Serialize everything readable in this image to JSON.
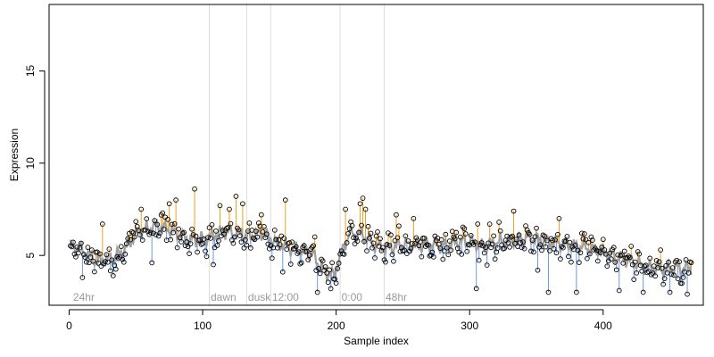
{
  "chart_data": {
    "type": "scatter",
    "title": "",
    "xlabel": "Sample index",
    "ylabel": "Expression",
    "xlim": [
      -15,
      475
    ],
    "ylim": [
      2.3,
      18.6
    ],
    "xticks": [
      0,
      100,
      200,
      300,
      400
    ],
    "yticks": [
      5,
      10,
      15
    ],
    "grid": false,
    "legend": "none",
    "colors": {
      "points_edge": "#000000",
      "fit_line": "#a0a0a0",
      "residual_above": "#f0a020",
      "residual_below": "#6a9ae0",
      "divider": "#dddddd",
      "annotation_text": "#9a9a9a"
    },
    "dividers": [
      105,
      133,
      151,
      203,
      236
    ],
    "annotations": [
      {
        "x": 3,
        "text": "24hr"
      },
      {
        "x": 106,
        "text": "dawn"
      },
      {
        "x": 134,
        "text": "dusk"
      },
      {
        "x": 152,
        "text": "12:00"
      },
      {
        "x": 204,
        "text": "0:00"
      },
      {
        "x": 237,
        "text": "48hr"
      }
    ],
    "anchors": [
      [
        1,
        5.5
      ],
      [
        10,
        5.3
      ],
      [
        20,
        4.7
      ],
      [
        30,
        4.8
      ],
      [
        40,
        5.2
      ],
      [
        52,
        6.3
      ],
      [
        65,
        6.6
      ],
      [
        75,
        6.4
      ],
      [
        85,
        6.0
      ],
      [
        95,
        5.8
      ],
      [
        105,
        6.0
      ],
      [
        115,
        6.3
      ],
      [
        125,
        6.2
      ],
      [
        135,
        6.0
      ],
      [
        145,
        6.2
      ],
      [
        155,
        5.7
      ],
      [
        165,
        5.4
      ],
      [
        175,
        5.3
      ],
      [
        183,
        5.0
      ],
      [
        190,
        4.2
      ],
      [
        198,
        3.9
      ],
      [
        203,
        5.0
      ],
      [
        210,
        6.2
      ],
      [
        220,
        6.1
      ],
      [
        230,
        5.5
      ],
      [
        240,
        5.4
      ],
      [
        250,
        5.6
      ],
      [
        260,
        5.5
      ],
      [
        270,
        5.6
      ],
      [
        280,
        5.5
      ],
      [
        290,
        5.7
      ],
      [
        300,
        5.8
      ],
      [
        310,
        5.5
      ],
      [
        320,
        5.7
      ],
      [
        330,
        5.8
      ],
      [
        340,
        5.9
      ],
      [
        350,
        5.9
      ],
      [
        360,
        5.7
      ],
      [
        370,
        5.6
      ],
      [
        380,
        5.5
      ],
      [
        390,
        5.4
      ],
      [
        400,
        5.2
      ],
      [
        410,
        4.9
      ],
      [
        420,
        4.7
      ],
      [
        430,
        4.4
      ],
      [
        440,
        4.3
      ],
      [
        450,
        4.3
      ],
      [
        460,
        4.3
      ],
      [
        464,
        4.3
      ]
    ],
    "extremes": [
      [
        25,
        6.7
      ],
      [
        54,
        7.5
      ],
      [
        62,
        7.8
      ],
      [
        70,
        7.3
      ],
      [
        75,
        7.8
      ],
      [
        80,
        8.0
      ],
      [
        94,
        8.6
      ],
      [
        108,
        7.2
      ],
      [
        113,
        7.7
      ],
      [
        120,
        7.5
      ],
      [
        125,
        8.2
      ],
      [
        130,
        7.8
      ],
      [
        144,
        7.2
      ],
      [
        162,
        8.0
      ],
      [
        184,
        6.0
      ],
      [
        207,
        7.5
      ],
      [
        218,
        7.8
      ],
      [
        220,
        8.1
      ],
      [
        222,
        7.5
      ],
      [
        245,
        7.2
      ],
      [
        258,
        7.0
      ],
      [
        306,
        6.7
      ],
      [
        322,
        6.8
      ],
      [
        333,
        7.4
      ],
      [
        342,
        6.6
      ],
      [
        367,
        7.0
      ],
      [
        384,
        6.2
      ],
      [
        10,
        3.8
      ],
      [
        33,
        3.9
      ],
      [
        62,
        4.6
      ],
      [
        108,
        4.5
      ],
      [
        160,
        4.1
      ],
      [
        186,
        3.0
      ],
      [
        196,
        3.2
      ],
      [
        200,
        3.5
      ],
      [
        305,
        3.2
      ],
      [
        351,
        4.2
      ],
      [
        359,
        3.0
      ],
      [
        380,
        3.0
      ],
      [
        412,
        3.1
      ],
      [
        430,
        3.0
      ],
      [
        450,
        3.0
      ],
      [
        463,
        2.9
      ]
    ],
    "n_points": 466,
    "seed": 7
  }
}
